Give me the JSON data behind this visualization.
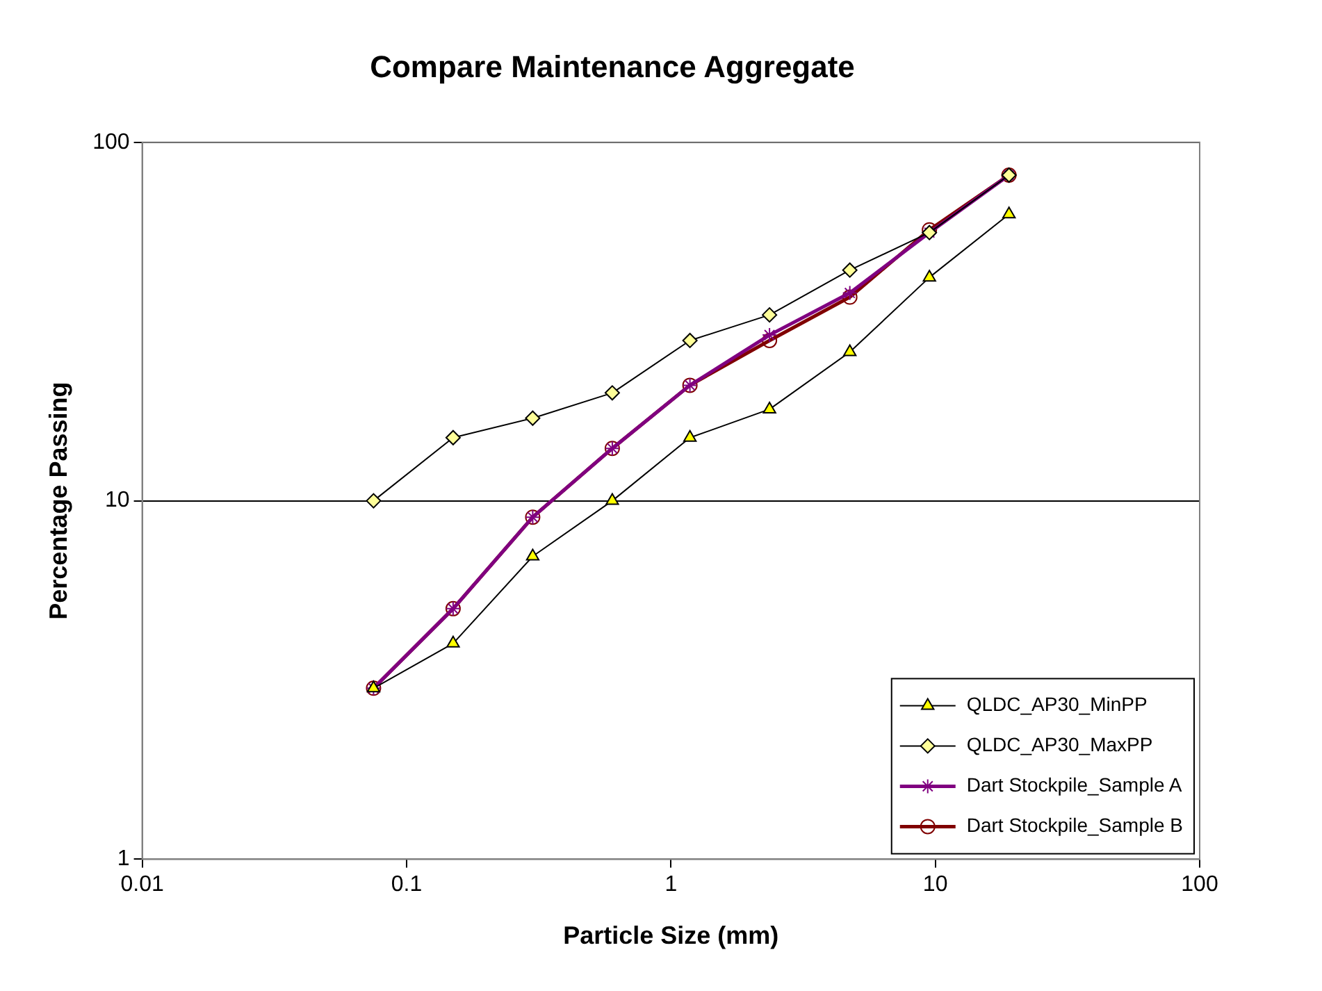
{
  "chart_data": {
    "type": "line",
    "title": "Compare Maintenance Aggregate",
    "xlabel": "Particle Size (mm)",
    "ylabel": "Percentage Passing",
    "x": [
      0.075,
      0.15,
      0.3,
      0.6,
      1.18,
      2.36,
      4.75,
      9.5,
      19
    ],
    "series": [
      {
        "name": "QLDC_AP30_MinPP",
        "color": "#000000",
        "marker": "triangle",
        "values": [
          3,
          4,
          7,
          10,
          15,
          18,
          26,
          42,
          63
        ]
      },
      {
        "name": "QLDC_AP30_MaxPP",
        "color": "#000000",
        "marker": "diamond",
        "values": [
          10,
          15,
          17,
          20,
          28,
          33,
          44,
          56,
          81
        ]
      },
      {
        "name": "Dart Stockpile_Sample A",
        "color": "#800080",
        "marker": "cross",
        "values": [
          3,
          5,
          9,
          14,
          21,
          29,
          38,
          56,
          81
        ]
      },
      {
        "name": "Dart Stockpile_Sample B",
        "color": "#800000",
        "marker": "circle",
        "values": [
          3,
          5,
          9,
          14,
          21,
          28,
          37,
          57,
          81
        ]
      }
    ],
    "log": "xy",
    "xlim": [
      0.01,
      100
    ],
    "xticks": [
      0.01,
      0.1,
      1,
      10,
      100
    ],
    "ylim": [
      1,
      100
    ],
    "yticks": [
      1,
      10,
      100
    ],
    "grid": "y",
    "legend": "bottom right",
    "line_style": "solid"
  }
}
